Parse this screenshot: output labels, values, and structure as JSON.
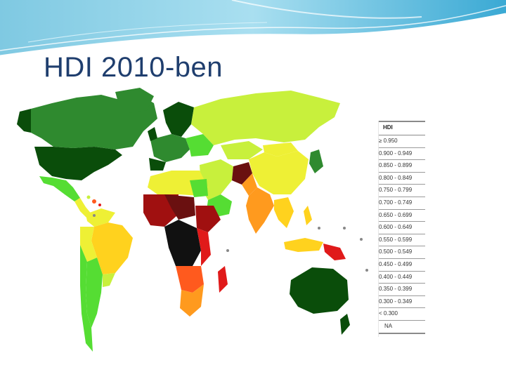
{
  "slide": {
    "title": "HDI 2010-ben"
  },
  "legend": {
    "header": "HDI",
    "rows": [
      "≥ 0.950",
      "0.900 - 0.949",
      "0.850 - 0.899",
      "0.800 - 0.849",
      "0.750 - 0.799",
      "0.700 - 0.749",
      "0.650 - 0.699",
      "0.600 - 0.649",
      "0.550 - 0.599",
      "0.500 - 0.549",
      "0.450 - 0.499",
      "0.400 - 0.449",
      "0.350 - 0.399",
      "0.300 - 0.349",
      "< 0.300",
      "NA"
    ]
  },
  "colors": {
    "title": "#1f3e6e",
    "ocean": "#ffffff",
    "very_high": "#0a4d0a",
    "high_1": "#2f8a2f",
    "high_2": "#3fb43f",
    "high_3": "#55dd33",
    "medium_1": "#c8f03c",
    "medium_2": "#eef035",
    "medium_3": "#ffd21e",
    "medium_4": "#ff9a1e",
    "low_1": "#ff5a1e",
    "low_2": "#e01a1a",
    "low_3": "#a01010",
    "low_4": "#6a1010",
    "lowest": "#111111",
    "na": "#bbbbbb"
  }
}
